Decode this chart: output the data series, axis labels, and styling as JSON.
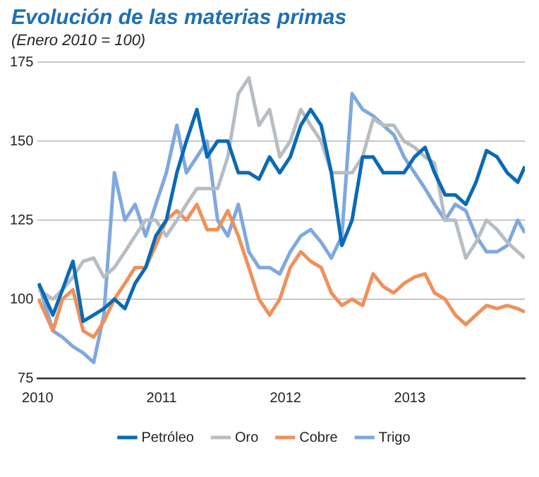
{
  "chart_data": {
    "type": "line",
    "title": "Evolución de las materias primas",
    "subtitle": "(Enero 2010 = 100)",
    "x": [
      "2010-01-04",
      "2010-02-15",
      "2010-03-15",
      "2010-04-15",
      "2010-05-15",
      "2010-06-15",
      "2010-07-15",
      "2010-08-15",
      "2010-09-15",
      "2010-10-15",
      "2010-11-15",
      "2010-12-15",
      "2011-01-15",
      "2011-02-15",
      "2011-03-15",
      "2011-04-15",
      "2011-05-15",
      "2011-06-15",
      "2011-07-15",
      "2011-08-15",
      "2011-09-15",
      "2011-10-15",
      "2011-11-15",
      "2011-12-15",
      "2012-01-15",
      "2012-02-15",
      "2012-03-15",
      "2012-04-15",
      "2012-05-15",
      "2012-06-15",
      "2012-07-15",
      "2012-08-15",
      "2012-09-15",
      "2012-10-15",
      "2012-11-15",
      "2012-12-15",
      "2013-01-15",
      "2013-02-15",
      "2013-03-15",
      "2013-04-15",
      "2013-05-15",
      "2013-06-15",
      "2013-07-15",
      "2013-08-15",
      "2013-09-15",
      "2013-10-15",
      "2013-11-15",
      "2013-12-06"
    ],
    "series": [
      {
        "name": "Petróleo",
        "color": "#0a6ab5",
        "values": [
          105,
          95,
          103,
          112,
          93,
          95,
          97,
          100,
          97,
          105,
          110,
          120,
          125,
          140,
          150,
          160,
          145,
          150,
          150,
          140,
          140,
          138,
          145,
          140,
          145,
          155,
          160,
          155,
          140,
          117,
          125,
          145,
          145,
          140,
          140,
          140,
          145,
          148,
          140,
          133,
          133,
          130,
          137,
          147,
          145,
          140,
          137,
          142
        ]
      },
      {
        "name": "Oro",
        "color": "#b7bec3",
        "values": [
          103,
          100,
          103,
          107,
          112,
          113,
          107,
          110,
          115,
          120,
          125,
          125,
          120,
          125,
          130,
          135,
          135,
          135,
          145,
          165,
          170,
          155,
          160,
          145,
          150,
          160,
          155,
          150,
          140,
          140,
          140,
          145,
          157,
          155,
          155,
          150,
          148,
          145,
          143,
          125,
          125,
          113,
          118,
          125,
          122,
          118,
          115,
          113
        ]
      },
      {
        "name": "Cobre",
        "color": "#f0905a",
        "values": [
          100,
          90,
          100,
          103,
          90,
          88,
          93,
          100,
          105,
          110,
          110,
          117,
          125,
          128,
          125,
          130,
          122,
          122,
          128,
          120,
          110,
          100,
          95,
          100,
          110,
          115,
          112,
          110,
          102,
          98,
          100,
          98,
          108,
          104,
          102,
          105,
          107,
          108,
          102,
          100,
          95,
          92,
          95,
          98,
          97,
          98,
          97,
          96
        ]
      },
      {
        "name": "Trigo",
        "color": "#7fa8e0",
        "values": [
          105,
          90,
          88,
          85,
          83,
          80,
          95,
          140,
          125,
          130,
          120,
          130,
          140,
          155,
          140,
          145,
          150,
          125,
          120,
          130,
          115,
          110,
          110,
          108,
          115,
          120,
          122,
          118,
          113,
          120,
          165,
          160,
          158,
          155,
          152,
          145,
          140,
          135,
          130,
          125,
          130,
          128,
          120,
          115,
          115,
          117,
          125,
          121
        ]
      }
    ],
    "xlim": [
      "2010-01-01",
      "2013-12-06"
    ],
    "xticks": [
      {
        "value": "2010-01-01",
        "label": "2010"
      },
      {
        "value": "2011-01-01",
        "label": "2011"
      },
      {
        "value": "2012-01-01",
        "label": "2012"
      },
      {
        "value": "2013-01-01",
        "label": "2013"
      }
    ],
    "ylim": [
      75,
      175
    ],
    "yticks": [
      75,
      100,
      125,
      150,
      175
    ],
    "grid": "y",
    "legend": "bottom",
    "marker": "none",
    "line_style": "solid"
  }
}
